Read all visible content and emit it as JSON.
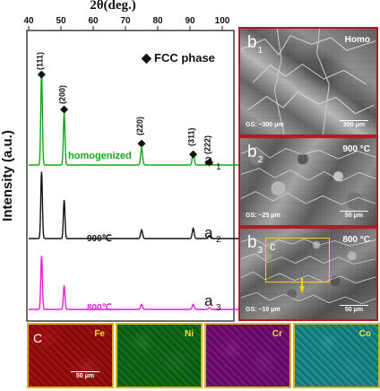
{
  "figure": {
    "left_chart": {
      "top_axis_label": "2θ(deg.)",
      "y_axis_label": "Intensity (a.u.)",
      "legend": "FCC phase",
      "x_ticks": [
        "40",
        "50",
        "60",
        "70",
        "80",
        "90",
        "100"
      ],
      "peak_labels": [
        "(111)",
        "(200)",
        "(220)",
        "(311)",
        "(222)"
      ],
      "trace_labels": {
        "homogenized": "homogenized",
        "t900": "900℃",
        "t800": "800℃"
      },
      "curve_tags": {
        "a1": "a",
        "a1_sub": "1",
        "a2": "a",
        "a2_sub": "2",
        "a3": "a",
        "a3_sub": "3"
      }
    },
    "micro_panels": [
      {
        "main": "b",
        "sub": "1",
        "title": "Homo",
        "gs": "GS: ~300 μm",
        "scale": "300 μm"
      },
      {
        "main": "b",
        "sub": "2",
        "title": "900 °C",
        "gs": "GS: ~25 μm",
        "scale": "50 μm"
      },
      {
        "main": "b",
        "sub": "3",
        "title": "800 °C",
        "gs": "GS: ~10 μm",
        "scale": "50 μm",
        "overlay_label": "c"
      }
    ],
    "eds_maps": {
      "panel_label": "C",
      "scale": "50 μm",
      "elements": [
        "Fe",
        "Ni",
        "Cr",
        "Co"
      ]
    },
    "colors": {
      "green": "#14a61b",
      "black": "#111111",
      "magenta": "#e321d8",
      "border_red": "#b21d23",
      "border_yellow": "#d4b12a"
    }
  },
  "chart_data": {
    "type": "line",
    "title": "",
    "xlabel": "2θ(deg.)",
    "ylabel": "Intensity (a.u.)",
    "xlim": [
      40,
      105
    ],
    "x_ticks": [
      40,
      50,
      60,
      70,
      80,
      90,
      100
    ],
    "legend": "FCC phase",
    "peak_positions": [
      44,
      51,
      75,
      91,
      96
    ],
    "peak_labels": [
      "(111)",
      "(200)",
      "(220)",
      "(311)",
      "(222)"
    ],
    "series": [
      {
        "name": "homogenized",
        "color": "#14a61b",
        "peaks": [
          {
            "x": 44,
            "h": 1.0
          },
          {
            "x": 51,
            "h": 0.56
          },
          {
            "x": 75,
            "h": 0.18
          },
          {
            "x": 91,
            "h": 0.14
          },
          {
            "x": 96,
            "h": 0.04
          }
        ]
      },
      {
        "name": "900℃",
        "color": "#111111",
        "peaks": [
          {
            "x": 44,
            "h": 0.92
          },
          {
            "x": 51,
            "h": 0.53
          },
          {
            "x": 75,
            "h": 0.12
          },
          {
            "x": 91,
            "h": 0.14
          },
          {
            "x": 96,
            "h": 0.04
          }
        ]
      },
      {
        "name": "800℃",
        "color": "#e321d8",
        "peaks": [
          {
            "x": 44,
            "h": 0.96
          },
          {
            "x": 51,
            "h": 0.43
          },
          {
            "x": 75,
            "h": 0.09
          },
          {
            "x": 91,
            "h": 0.09
          },
          {
            "x": 96,
            "h": 0.03
          }
        ]
      }
    ]
  }
}
